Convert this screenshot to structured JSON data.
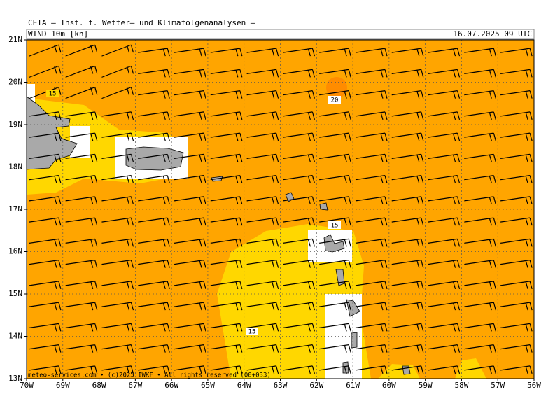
{
  "header": {
    "title": "CETA — Inst. f. Wetter— und Klimafolgenanalysen —",
    "field": "WIND 10m [kn]",
    "valid": "16.07.2025 09 UTC"
  },
  "axes": {
    "lat": [
      "21N",
      "20N",
      "19N",
      "18N",
      "17N",
      "16N",
      "15N",
      "14N",
      "13N"
    ],
    "lon": [
      "70W",
      "69W",
      "68W",
      "67W",
      "66W",
      "65W",
      "64W",
      "63W",
      "62W",
      "61W",
      "60W",
      "59W",
      "58W",
      "57W",
      "56W"
    ]
  },
  "contour_labels": [
    "15",
    "20",
    "15",
    "15"
  ],
  "footer": "meteo-services.com • (c)2025 IWKF • All rights reserved (00+033)"
}
